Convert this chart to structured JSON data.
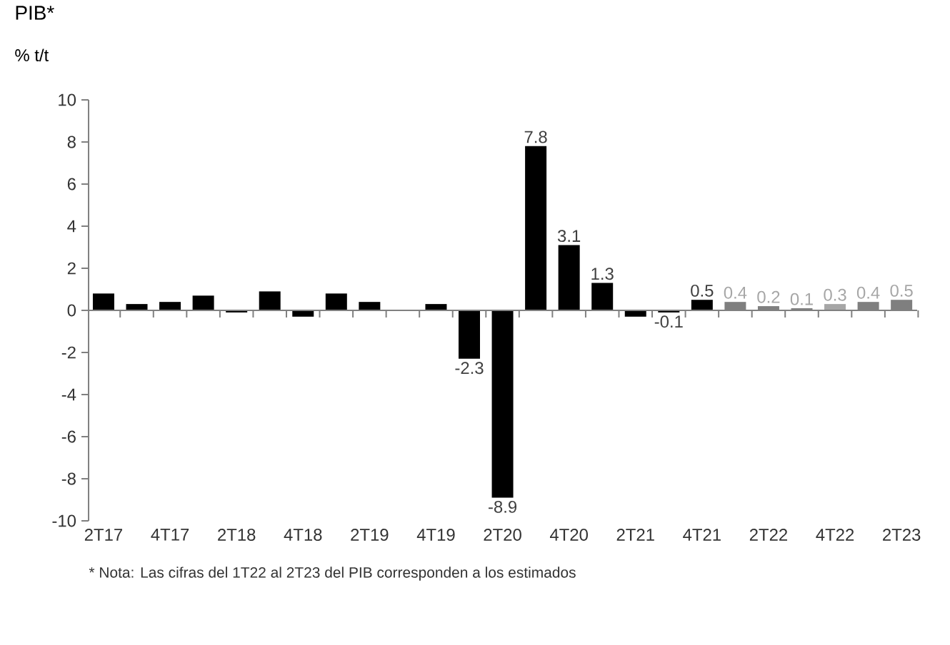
{
  "chart_data": {
    "type": "bar",
    "title": "PIB*",
    "ylabel": "% t/t",
    "categories": [
      "2T17",
      null,
      "4T17",
      null,
      "2T18",
      null,
      "4T18",
      null,
      "2T19",
      null,
      "4T19",
      null,
      "2T20",
      null,
      "4T20",
      null,
      "2T21",
      null,
      "4T21",
      null,
      "2T22",
      null,
      "4T22",
      null,
      "2T23"
    ],
    "values": [
      0.8,
      0.3,
      0.4,
      0.7,
      -0.1,
      0.9,
      -0.3,
      0.8,
      0.4,
      0,
      0.3,
      -2.3,
      -8.9,
      7.8,
      3.1,
      1.3,
      -0.3,
      -0.1,
      0.5,
      0.4,
      0.2,
      0.1,
      0.3,
      0.4,
      0.5
    ],
    "colors": [
      "#000000",
      "#000000",
      "#000000",
      "#000000",
      "#000000",
      "#000000",
      "#000000",
      "#000000",
      "#000000",
      "#000000",
      "#000000",
      "#000000",
      "#000000",
      "#000000",
      "#000000",
      "#000000",
      "#000000",
      "#000000",
      "#000000",
      "#7f7f7f",
      "#7f7f7f",
      "#7f7f7f",
      "#a6a6a6",
      "#7f7f7f",
      "#7f7f7f"
    ],
    "value_labels": [
      null,
      null,
      null,
      null,
      null,
      null,
      null,
      null,
      null,
      null,
      null,
      "-2.3",
      "-8.9",
      "7.8",
      "3.1",
      "1.3",
      null,
      "-0.1",
      "0.5",
      "0.4",
      "0.2",
      "0.1",
      "0.3",
      "0.4",
      "0.5"
    ],
    "ylim": [
      -10,
      10
    ],
    "yticks": [
      -10,
      -8,
      -6,
      -4,
      -2,
      0,
      2,
      4,
      6,
      8,
      10
    ],
    "annotations": [
      "* Nota: Las cifras del 1T22 al 2T23 del PIB corresponden a los estimados"
    ]
  }
}
